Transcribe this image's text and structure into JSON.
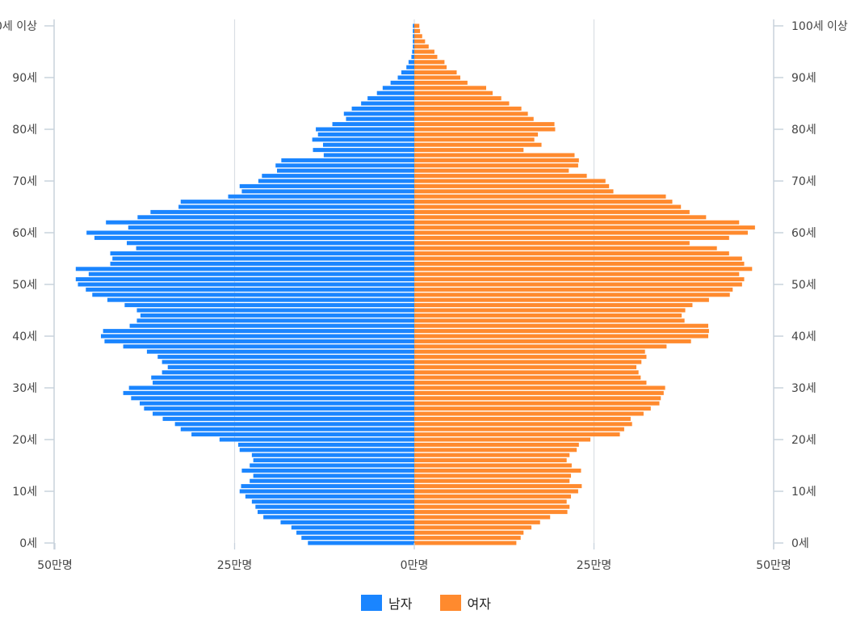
{
  "chart_data": {
    "type": "bar",
    "orientation": "horizontal",
    "layout": "population-pyramid",
    "categories_note": "age in years from 0 to 100 (100 = 100세 이상)",
    "age_ticks": [
      {
        "age": 0,
        "label": "0세"
      },
      {
        "age": 10,
        "label": "10세"
      },
      {
        "age": 20,
        "label": "20세"
      },
      {
        "age": 30,
        "label": "30세"
      },
      {
        "age": 40,
        "label": "40세"
      },
      {
        "age": 50,
        "label": "50세"
      },
      {
        "age": 60,
        "label": "60세"
      },
      {
        "age": 70,
        "label": "70세"
      },
      {
        "age": 80,
        "label": "80세"
      },
      {
        "age": 90,
        "label": "90세"
      },
      {
        "age": 100,
        "label": "100세 이상"
      }
    ],
    "value_ticks": [
      {
        "value": -50,
        "label": "50만명"
      },
      {
        "value": -25,
        "label": "25만명"
      },
      {
        "value": 0,
        "label": "0만명"
      },
      {
        "value": 25,
        "label": "25만명"
      },
      {
        "value": 50,
        "label": "50만명"
      }
    ],
    "value_unit": "만명",
    "xlim": [
      -50,
      50
    ],
    "grid": true,
    "legend_position": "bottom",
    "series": [
      {
        "name": "남자",
        "color": "#1a85ff",
        "values": [
          14.8,
          15.7,
          16.4,
          17.1,
          18.6,
          21.0,
          21.8,
          22.1,
          22.6,
          23.5,
          24.3,
          24.1,
          22.9,
          22.4,
          24.0,
          22.9,
          22.4,
          22.6,
          24.3,
          24.5,
          27.1,
          31.0,
          32.5,
          33.3,
          35.0,
          36.4,
          37.6,
          38.2,
          39.4,
          40.5,
          39.7,
          36.4,
          36.6,
          35.1,
          34.3,
          35.1,
          35.7,
          37.2,
          40.5,
          43.1,
          43.6,
          43.3,
          39.6,
          38.6,
          38.1,
          38.6,
          40.3,
          42.7,
          44.8,
          45.7,
          46.8,
          47.1,
          45.3,
          47.1,
          42.3,
          42.0,
          42.3,
          38.7,
          40.0,
          44.5,
          45.6,
          39.8,
          42.9,
          38.5,
          36.7,
          32.8,
          32.5,
          25.9,
          24.0,
          24.3,
          21.7,
          21.2,
          19.1,
          19.3,
          18.5,
          12.6,
          14.1,
          12.7,
          14.2,
          13.4,
          13.7,
          11.4,
          9.5,
          9.8,
          8.7,
          7.4,
          6.5,
          5.2,
          4.4,
          3.3,
          2.3,
          1.8,
          1.1,
          0.8,
          0.4,
          0.3,
          0.2,
          0.2,
          0.2,
          0.2,
          0.2
        ]
      },
      {
        "name": "여자",
        "color": "#ff8a2e",
        "values": [
          14.2,
          14.8,
          15.2,
          16.3,
          17.5,
          18.9,
          21.3,
          21.6,
          21.2,
          21.8,
          22.8,
          23.3,
          21.6,
          21.8,
          23.2,
          21.9,
          21.2,
          21.6,
          22.6,
          22.9,
          24.5,
          28.6,
          29.2,
          30.3,
          30.1,
          31.9,
          32.9,
          34.1,
          34.3,
          34.7,
          34.9,
          32.3,
          31.5,
          31.2,
          30.9,
          31.6,
          32.3,
          32.1,
          35.1,
          38.5,
          40.9,
          41.0,
          40.9,
          37.6,
          37.2,
          37.7,
          38.7,
          41.0,
          43.9,
          44.3,
          45.6,
          45.9,
          45.2,
          47.0,
          45.9,
          45.6,
          43.8,
          42.1,
          38.3,
          43.8,
          46.4,
          47.4,
          45.2,
          40.6,
          38.3,
          37.1,
          35.9,
          35.0,
          27.7,
          27.1,
          26.6,
          24.0,
          21.5,
          22.8,
          22.9,
          22.3,
          15.2,
          17.7,
          16.7,
          17.2,
          19.6,
          19.5,
          16.6,
          15.8,
          14.9,
          13.2,
          12.1,
          10.9,
          10.0,
          7.4,
          6.4,
          5.9,
          4.5,
          4.2,
          3.2,
          2.8,
          2.0,
          1.5,
          1.1,
          0.8,
          0.7
        ]
      }
    ]
  }
}
